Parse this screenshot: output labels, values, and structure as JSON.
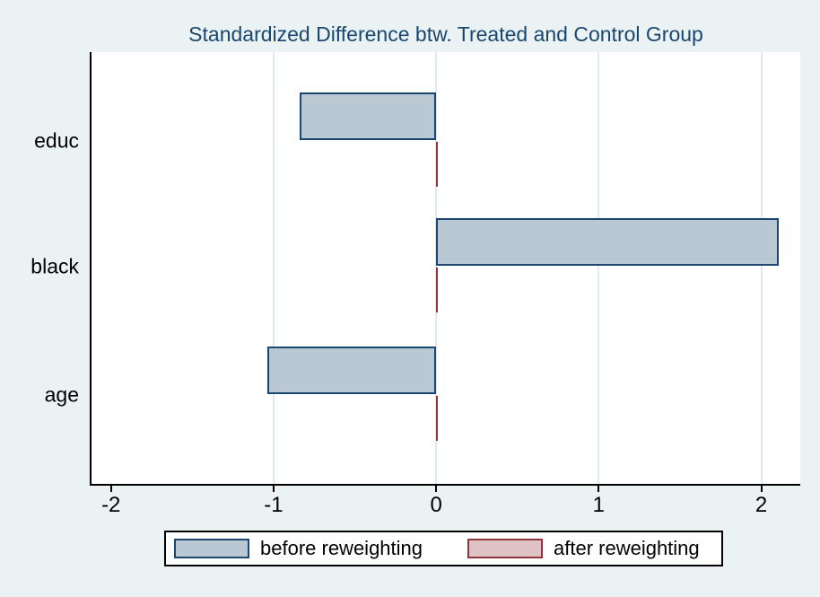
{
  "window": {
    "background_color": "#eaf2f3",
    "plot_background_color": "#ffffff"
  },
  "chart_data": {
    "type": "bar",
    "orientation": "horizontal",
    "title": "Standardized Difference btw. Treated and Control Group",
    "title_color": "#1a476f",
    "categories": [
      "educ",
      "black",
      "age"
    ],
    "series": [
      {
        "name": "before reweighting",
        "values": [
          -0.84,
          2.11,
          -1.04
        ],
        "fill_color": "#bac8d4",
        "border_color": "#1a476f"
      },
      {
        "name": "after reweighting",
        "values": [
          0.0,
          0.0,
          0.0
        ],
        "fill_color": "#dec2c4",
        "border_color": "#90353b"
      }
    ],
    "xlabel": "",
    "ylabel": "",
    "xlim": [
      -2.12,
      2.24
    ],
    "xticks": [
      -2,
      -1,
      0,
      1,
      2
    ],
    "gridlines_x": [
      -1,
      0,
      1,
      2
    ],
    "grid": "on",
    "gridline_color": "#dfe9ef",
    "legend_position": "bottom",
    "band_centers_frac": [
      0.206,
      0.497,
      0.794
    ]
  },
  "legend": {
    "items": [
      {
        "label": "before reweighting"
      },
      {
        "label": "after reweighting"
      }
    ]
  }
}
